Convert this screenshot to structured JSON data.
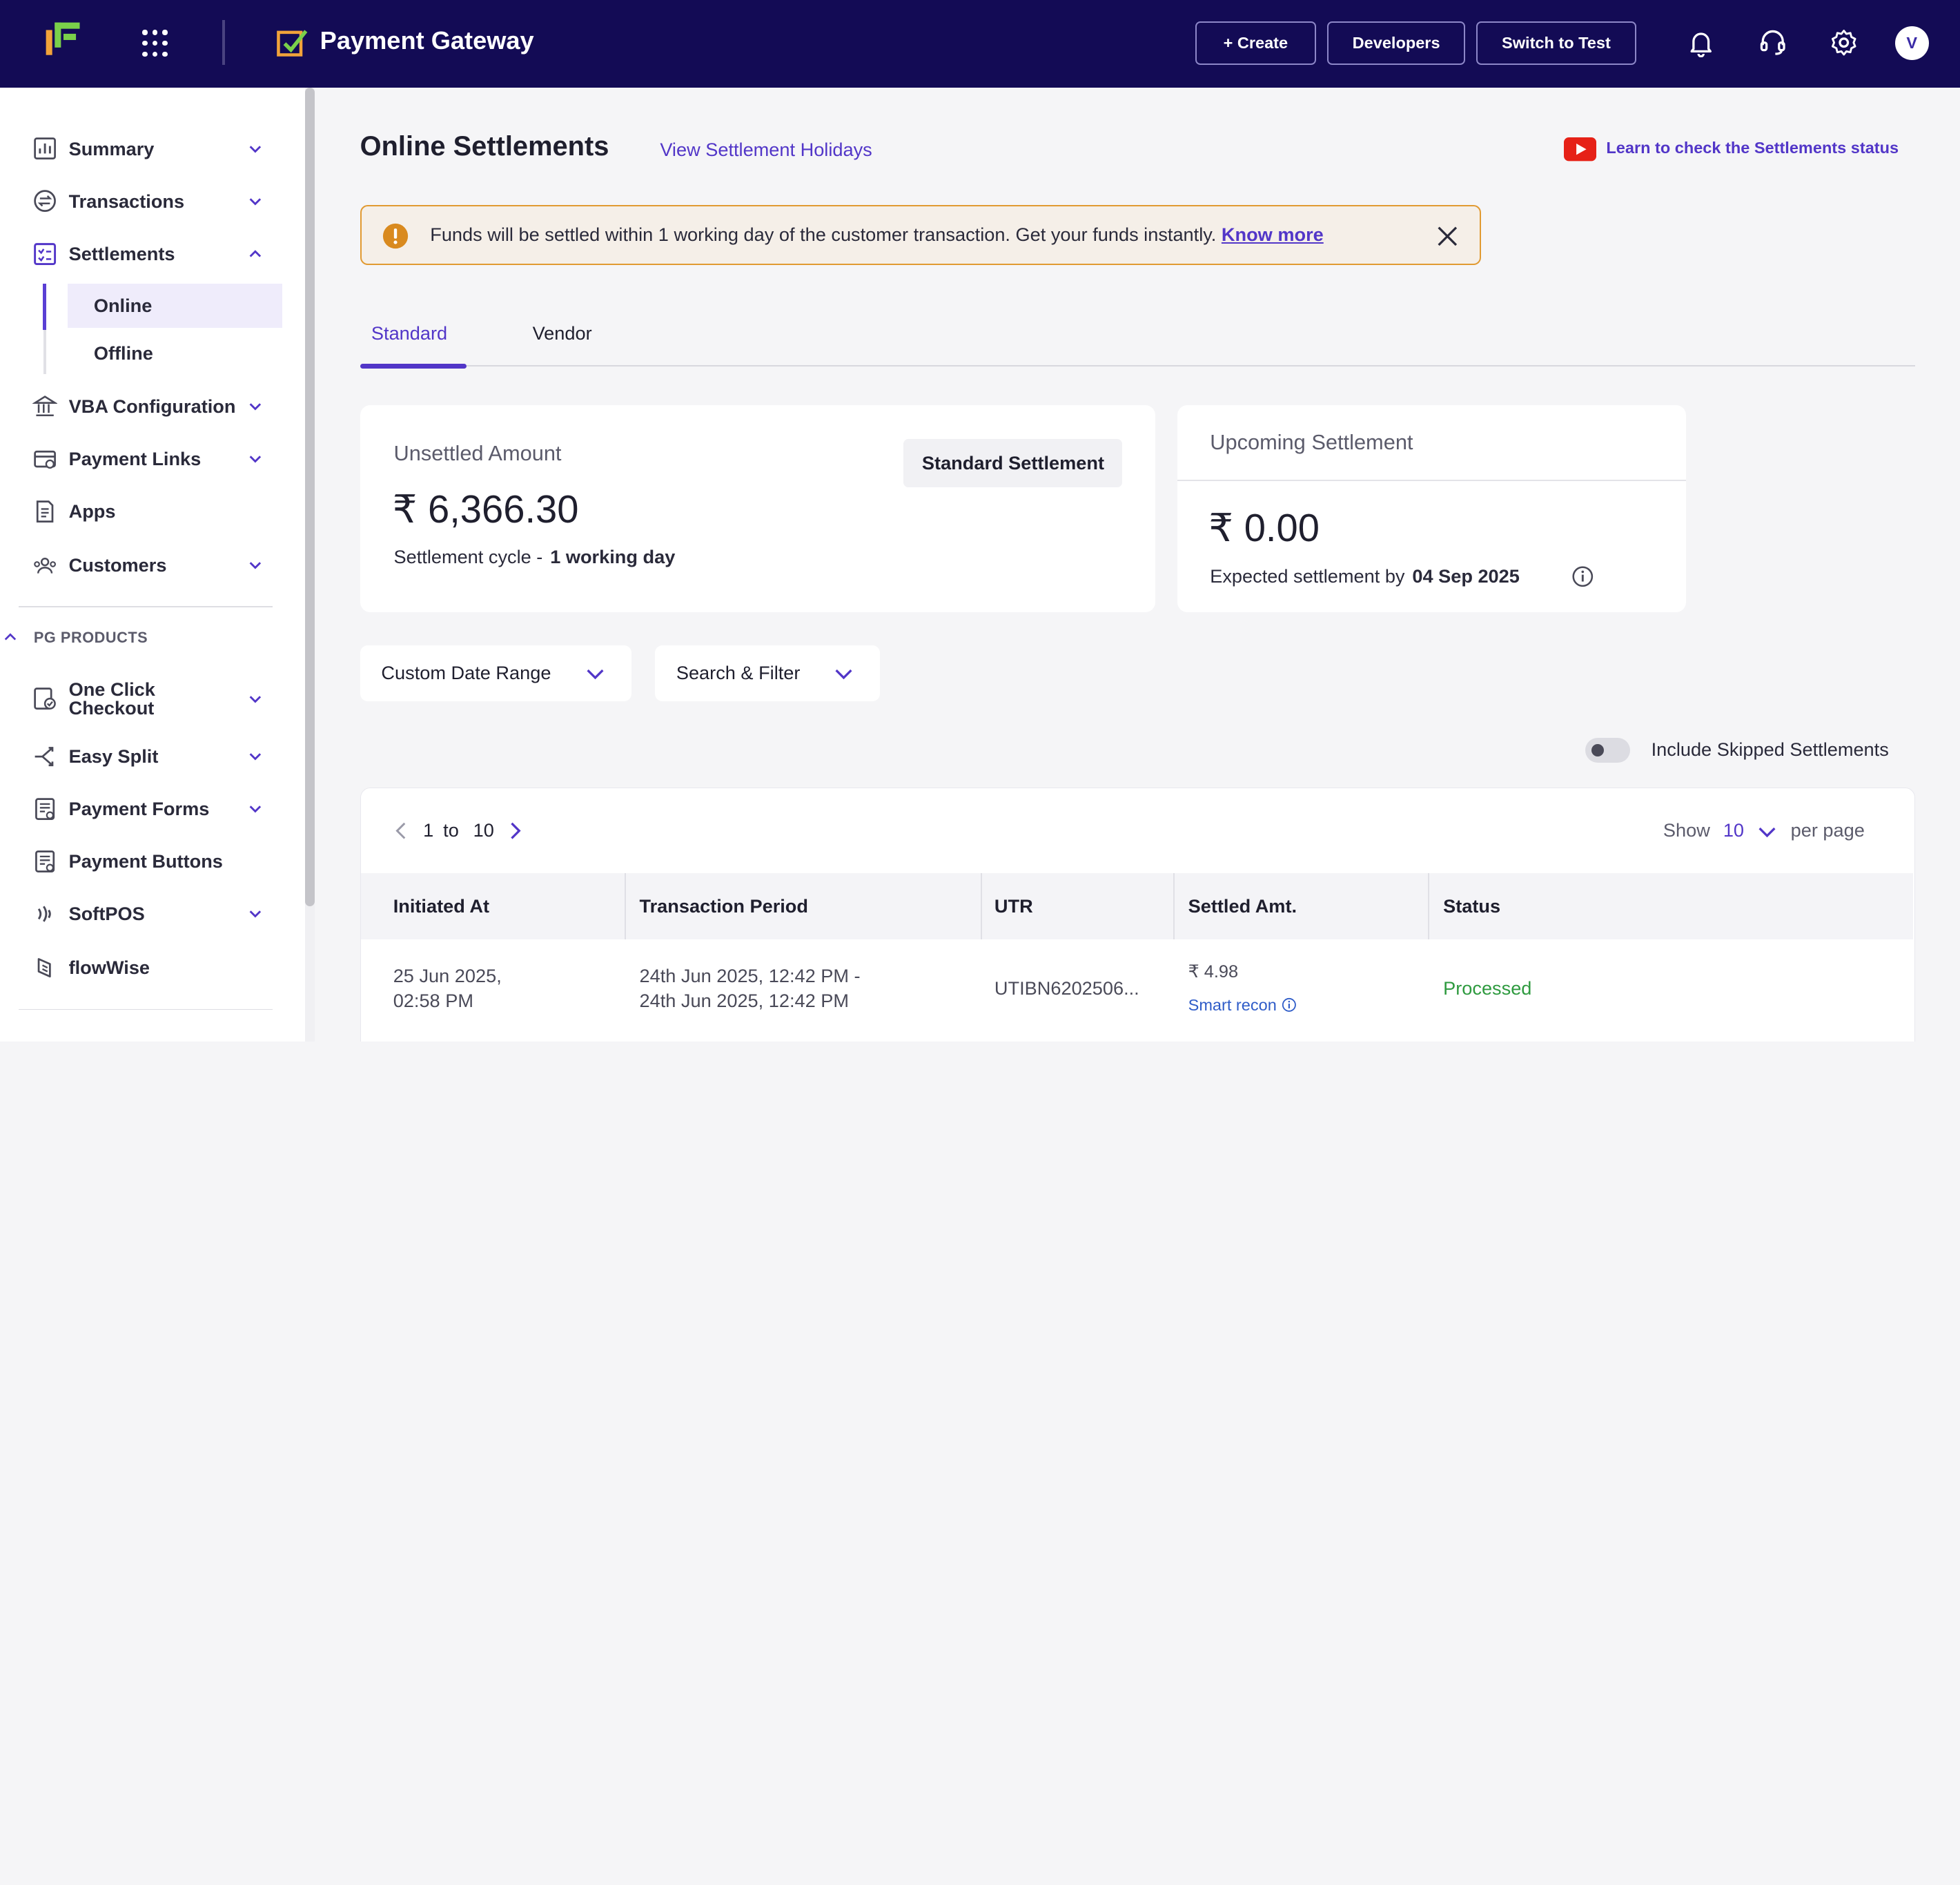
{
  "topbar": {
    "product_title": "Payment Gateway",
    "create_label": "+ Create",
    "developers_label": "Developers",
    "switch_label": "Switch to Test",
    "avatar_initial": "V"
  },
  "sidebar": {
    "items": [
      {
        "label": "Summary"
      },
      {
        "label": "Transactions"
      },
      {
        "label": "Settlements"
      },
      {
        "label": "VBA Configuration"
      },
      {
        "label": "Payment Links"
      },
      {
        "label": "Apps"
      },
      {
        "label": "Customers"
      }
    ],
    "settlements_sub": [
      {
        "label": "Online"
      },
      {
        "label": "Offline"
      }
    ],
    "section_label": "PG PRODUCTS",
    "products": [
      {
        "label": "One Click\nCheckout"
      },
      {
        "label": "Easy Split"
      },
      {
        "label": "Payment Forms"
      },
      {
        "label": "Payment Buttons"
      },
      {
        "label": "SoftPOS"
      },
      {
        "label": "flowWise"
      }
    ]
  },
  "page": {
    "title": "Online Settlements",
    "holidays_link": "View Settlement Holidays",
    "learn_link": "Learn to check the Settlements status"
  },
  "alert": {
    "text": "Funds will be settled within 1 working day of the customer transaction. Get your funds instantly. ",
    "link": "Know more"
  },
  "tabs": [
    {
      "label": "Standard"
    },
    {
      "label": "Vendor"
    }
  ],
  "unsettled": {
    "label": "Unsettled Amount",
    "amount": "₹ 6,366.30",
    "cycle_label": "Settlement cycle -",
    "cycle_value": "1 working day",
    "badge": "Standard Settlement"
  },
  "upcoming": {
    "label": "Upcoming Settlement",
    "amount": "₹ 0.00",
    "expected_label": "Expected settlement by",
    "expected_date": "04 Sep 2025"
  },
  "filters": {
    "date_range": "Custom Date Range",
    "search_filter": "Search & Filter"
  },
  "toggle": {
    "label": "Include Skipped Settlements"
  },
  "pager": {
    "from": "1",
    "to_word": "to",
    "to": "10",
    "show_label": "Show",
    "per_page_value": "10",
    "per_page_label": "per page"
  },
  "table": {
    "columns": [
      "Initiated At",
      "Transaction Period",
      "UTR",
      "Settled Amt.",
      "Status"
    ],
    "rows": [
      {
        "initiated_line1": "25 Jun 2025,",
        "initiated_line2": "02:58 PM",
        "period_line1": "24th Jun 2025, 12:42 PM -",
        "period_line2": "24th Jun 2025, 12:42 PM",
        "utr": "UTIBN6202506...",
        "amount": "₹ 4.98",
        "smart_recon": "Smart recon",
        "status": "Processed"
      }
    ]
  },
  "colors": {
    "topbar": "#130b55",
    "accent": "#5236c8",
    "alert_border": "#e19a32",
    "status_processed": "#2e9a3f"
  }
}
